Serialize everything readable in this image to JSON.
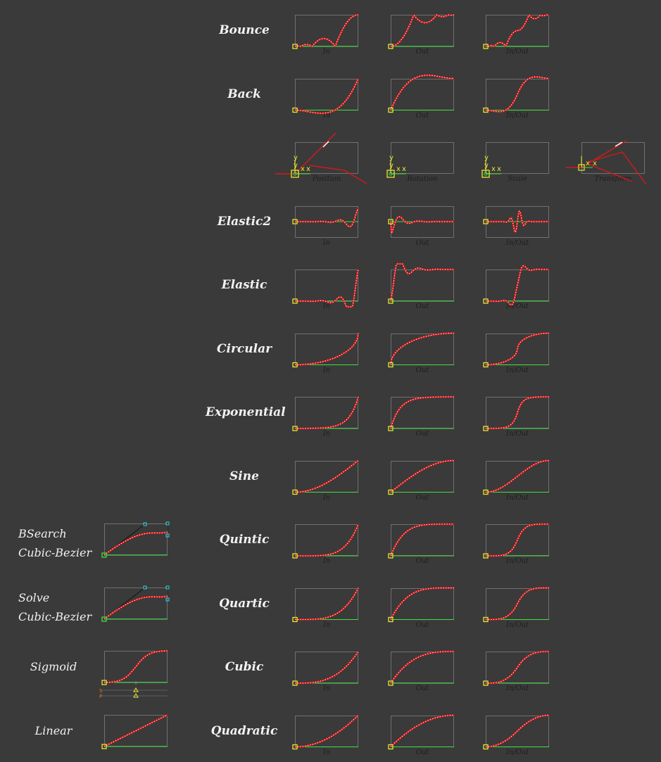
{
  "rows": [
    {
      "name": "Bounce",
      "labels": [
        "In",
        "Out",
        "In/Out"
      ]
    },
    {
      "name": "Back",
      "labels": [
        "In",
        "Out",
        "In/Out"
      ]
    },
    {
      "name": "",
      "labels": [
        "Position",
        "Rotation",
        "Scale",
        "Transform"
      ]
    },
    {
      "name": "Elastic2",
      "labels": [
        "In",
        "Out",
        "In/Out"
      ]
    },
    {
      "name": "Elastic",
      "labels": [
        "In",
        "Out",
        "In/Out"
      ]
    },
    {
      "name": "Circular",
      "labels": [
        "In",
        "Out",
        "In/Out"
      ]
    },
    {
      "name": "Exponential",
      "labels": [
        "In",
        "Out",
        "In/Out"
      ]
    },
    {
      "name": "Sine",
      "labels": [
        "In",
        "Out",
        "In/Out"
      ]
    },
    {
      "name": "Quintic",
      "labels": [
        "In",
        "Out",
        "In/Out"
      ]
    },
    {
      "name": "Quartic",
      "labels": [
        "In",
        "Out",
        "In/Out"
      ]
    },
    {
      "name": "Cubic",
      "labels": [
        "In",
        "Out",
        "In/Out"
      ]
    },
    {
      "name": "Quadratic",
      "labels": [
        "In",
        "Out",
        "In/Out"
      ]
    }
  ],
  "left_panels": [
    {
      "lines": [
        "BSearch",
        "Cubic-Bezier"
      ]
    },
    {
      "lines": [
        "Solve",
        "Cubic-Bezier"
      ]
    },
    {
      "lines": [
        "Sigmoid"
      ],
      "slider_labels": [
        "S",
        "P"
      ]
    },
    {
      "lines": [
        "Linear"
      ]
    }
  ],
  "gizmo_labels": {
    "x": "x",
    "y": "y"
  },
  "colors": {
    "background": "#3a3a3a",
    "curve": "#d81818",
    "curve_highlight": "#ffffff",
    "baseline": "#3fe23f",
    "handle": "#e8e832",
    "bezier_handle": "#2fd0e0",
    "frame": "#707070"
  }
}
